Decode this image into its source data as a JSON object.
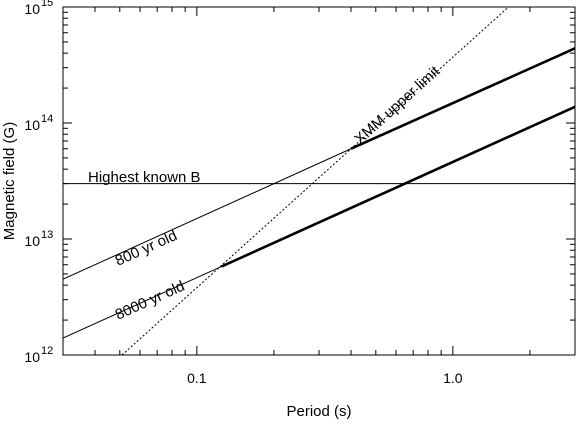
{
  "chart_data": {
    "type": "line",
    "x_scale": "log",
    "y_scale": "log",
    "xlabel": "Period (s)",
    "ylabel": "Magnetic field (G)",
    "xlim": [
      0.03,
      3.0
    ],
    "ylim": [
      1000000000000.0,
      1000000000000000.0
    ],
    "grid": false,
    "x_ticks": [
      {
        "value": 0.1,
        "label": "0.1"
      },
      {
        "value": 1.0,
        "label": "1.0"
      }
    ],
    "y_ticks": [
      {
        "value": 1000000000000.0,
        "base": "10",
        "exp": "12"
      },
      {
        "value": 10000000000000.0,
        "base": "10",
        "exp": "13"
      },
      {
        "value": 100000000000000.0,
        "base": "10",
        "exp": "14"
      },
      {
        "value": 1000000000000000.0,
        "base": "10",
        "exp": "15"
      }
    ],
    "series": [
      {
        "name": "800 yr old",
        "style": "thin-then-thick",
        "x": [
          0.03,
          0.4,
          3.0
        ],
        "y": [
          4500000000000.0,
          60000000000000.0,
          440000000000000.0
        ],
        "thick_from_x": 0.4
      },
      {
        "name": "8000 yr old",
        "style": "thin-then-thick",
        "x": [
          0.03,
          0.125,
          3.0
        ],
        "y": [
          1400000000000.0,
          5800000000000.0,
          138000000000000.0
        ],
        "thick_from_x": 0.125
      },
      {
        "name": "XMM upper limit",
        "style": "dotted",
        "x": [
          0.051,
          1.65
        ],
        "y": [
          1000000000000.0,
          1000000000000000.0
        ]
      },
      {
        "name": "Highest known B",
        "style": "horizontal",
        "x": [
          0.03,
          3.0
        ],
        "y": [
          30000000000000.0,
          30000000000000.0
        ]
      }
    ],
    "annotations": [
      {
        "text": "Highest known B",
        "for": "Highest known B"
      },
      {
        "text": "800 yr old",
        "for": "800 yr old"
      },
      {
        "text": "8000 yr old",
        "for": "8000 yr old"
      },
      {
        "text": "XMM upper limit",
        "for": "XMM upper limit"
      }
    ]
  }
}
